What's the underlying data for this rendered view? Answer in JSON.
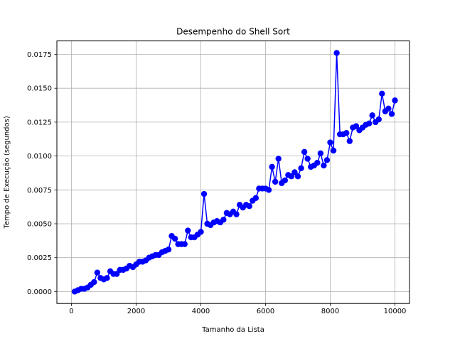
{
  "chart_data": {
    "type": "line",
    "title": "Desempenho do Shell Sort",
    "xlabel": "Tamanho da Lista",
    "ylabel": "Tempo de Execução (segundos)",
    "xlim": [
      -450,
      10450
    ],
    "ylim": [
      -0.00088,
      0.01849
    ],
    "xticks": [
      0,
      2000,
      4000,
      6000,
      8000,
      10000
    ],
    "xtick_labels": [
      "0",
      "2000",
      "4000",
      "6000",
      "8000",
      "10000"
    ],
    "yticks": [
      0,
      0.0025,
      0.005,
      0.0075,
      0.01,
      0.0125,
      0.015,
      0.0175
    ],
    "ytick_labels": [
      "0.0000",
      "0.0025",
      "0.0050",
      "0.0075",
      "0.0100",
      "0.0125",
      "0.0150",
      "0.0175"
    ],
    "grid": true,
    "color": "#0000ff",
    "series": [
      {
        "x": [
          100,
          200,
          300,
          400,
          500,
          600,
          700,
          800,
          900,
          1000,
          1100,
          1200,
          1300,
          1400,
          1500,
          1600,
          1700,
          1800,
          1900,
          2000,
          2100,
          2200,
          2300,
          2400,
          2500,
          2600,
          2700,
          2800,
          2900,
          3000,
          3100,
          3200,
          3300,
          3400,
          3500,
          3600,
          3700,
          3800,
          3900,
          4000,
          4100,
          4200,
          4300,
          4400,
          4500,
          4600,
          4700,
          4800,
          4900,
          5000,
          5100,
          5200,
          5300,
          5400,
          5500,
          5600,
          5700,
          5800,
          5900,
          6000,
          6100,
          6200,
          6300,
          6400,
          6500,
          6600,
          6700,
          6800,
          6900,
          7000,
          7100,
          7200,
          7300,
          7400,
          7500,
          7600,
          7700,
          7800,
          7900,
          8000,
          8100,
          8200,
          8300,
          8400,
          8500,
          8600,
          8700,
          8800,
          8900,
          9000,
          9100,
          9200,
          9300,
          9400,
          9500,
          9600,
          9700,
          9800,
          9900,
          10000
        ],
        "values": [
          0.0,
          0.0001,
          0.0002,
          0.0002,
          0.0003,
          0.0005,
          0.0007,
          0.0014,
          0.001,
          0.0009,
          0.001,
          0.0015,
          0.0013,
          0.0013,
          0.0016,
          0.0016,
          0.0017,
          0.0019,
          0.0018,
          0.002,
          0.0022,
          0.0022,
          0.0023,
          0.0025,
          0.0026,
          0.0027,
          0.0027,
          0.0029,
          0.003,
          0.0031,
          0.0041,
          0.0039,
          0.0035,
          0.0035,
          0.0035,
          0.0045,
          0.004,
          0.004,
          0.0042,
          0.0044,
          0.0072,
          0.005,
          0.0049,
          0.0051,
          0.0052,
          0.0051,
          0.0053,
          0.0058,
          0.0057,
          0.0059,
          0.0057,
          0.0064,
          0.0062,
          0.0064,
          0.0063,
          0.0067,
          0.0069,
          0.0076,
          0.0076,
          0.0076,
          0.0075,
          0.0092,
          0.0081,
          0.0098,
          0.008,
          0.0082,
          0.0086,
          0.0085,
          0.0088,
          0.0085,
          0.0091,
          0.0103,
          0.0098,
          0.0092,
          0.0093,
          0.0095,
          0.0102,
          0.0093,
          0.0097,
          0.011,
          0.0104,
          0.0176,
          0.0116,
          0.0116,
          0.0117,
          0.0111,
          0.0121,
          0.0122,
          0.0119,
          0.0121,
          0.0123,
          0.0124,
          0.013,
          0.0125,
          0.0127,
          0.0146,
          0.0133,
          0.0135,
          0.0131,
          0.0141
        ]
      }
    ]
  }
}
